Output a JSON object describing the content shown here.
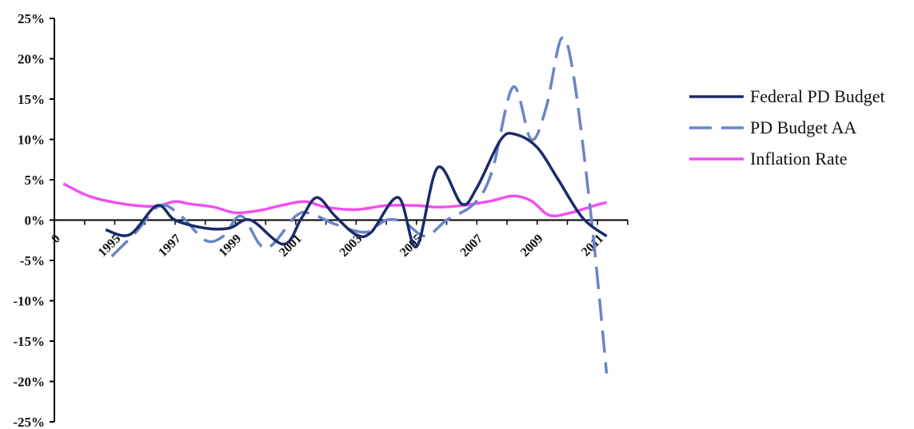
{
  "chart_data": {
    "type": "line",
    "title": "",
    "xlabel": "",
    "ylabel": "",
    "ylim": [
      -25,
      25
    ],
    "y_tick_labels": [
      "25%",
      "20%",
      "15%",
      "10%",
      "5%",
      "0%",
      "-5%",
      "-10%",
      "-15%",
      "-20%",
      "-25%"
    ],
    "y_tick_values": [
      25,
      20,
      15,
      10,
      5,
      0,
      -5,
      -10,
      -15,
      -20,
      -25
    ],
    "x_origin_label": "0",
    "x_tick_labels": [
      "1995",
      "1997",
      "1999",
      "2001",
      "2003",
      "2005",
      "2007",
      "2009",
      "2011"
    ],
    "x_tick_values": [
      1995,
      1997,
      1999,
      2001,
      2003,
      2005,
      2007,
      2009,
      2011
    ],
    "xlim": [
      1993,
      2012
    ],
    "grid": false,
    "legend_position": "right",
    "series": [
      {
        "name": "Federal PD Budget",
        "color": "#1b2a6b",
        "dash": "solid",
        "x": [
          1994.7,
          1995.5,
          1996.4,
          1997.0,
          1998.0,
          1998.8,
          1999.5,
          2000.6,
          2001.2,
          2001.7,
          2002.3,
          2003.0,
          2003.5,
          2004.4,
          2005.0,
          2005.7,
          2006.5,
          2007.0,
          2007.8,
          2008.3,
          2009.0,
          2009.7,
          2010.5,
          2011.3
        ],
        "y": [
          -1.2,
          -1.8,
          1.8,
          0.0,
          -1.0,
          -1.0,
          0.0,
          -3.0,
          0.3,
          2.8,
          0.5,
          -1.8,
          -1.5,
          2.8,
          -3.3,
          6.5,
          2.0,
          4.0,
          10.0,
          10.6,
          9.0,
          5.0,
          0.3,
          -2.0
        ]
      },
      {
        "name": "PD Budget AA",
        "color": "#6b84c8",
        "dash": "dashed",
        "x": [
          1994.9,
          1995.7,
          1996.5,
          1997.2,
          1998.0,
          1998.6,
          1999.2,
          2000.0,
          2001.0,
          2001.5,
          2002.3,
          2003.3,
          2004.0,
          2004.6,
          2005.3,
          2006.0,
          2006.9,
          2007.5,
          2008.2,
          2008.8,
          2009.3,
          2009.8,
          2010.2,
          2010.8,
          2011.3
        ],
        "y": [
          -4.5,
          -1.5,
          1.8,
          0.5,
          -2.5,
          -2.0,
          0.5,
          -3.5,
          0.5,
          0.8,
          -0.5,
          -1.5,
          0.0,
          -0.3,
          -2.0,
          0.0,
          2.0,
          6.0,
          16.5,
          10.0,
          14.0,
          22.5,
          18.0,
          0.0,
          -19.0
        ]
      },
      {
        "name": "Inflation Rate",
        "color": "#f24ff2",
        "dash": "solid",
        "x": [
          1993.3,
          1994.2,
          1995.3,
          1996.3,
          1997.0,
          1997.5,
          1998.3,
          1999.0,
          1999.8,
          2000.5,
          2001.3,
          2002.0,
          2003.0,
          2004.0,
          2005.0,
          2005.7,
          2006.5,
          2007.5,
          2008.2,
          2008.8,
          2009.4,
          2010.1,
          2010.9,
          2011.3
        ],
        "y": [
          4.5,
          2.9,
          2.0,
          1.7,
          2.3,
          2.0,
          1.6,
          0.9,
          1.2,
          1.8,
          2.3,
          1.6,
          1.3,
          1.8,
          1.8,
          1.6,
          1.8,
          2.4,
          3.0,
          2.4,
          0.6,
          0.9,
          1.8,
          2.2
        ]
      }
    ]
  }
}
